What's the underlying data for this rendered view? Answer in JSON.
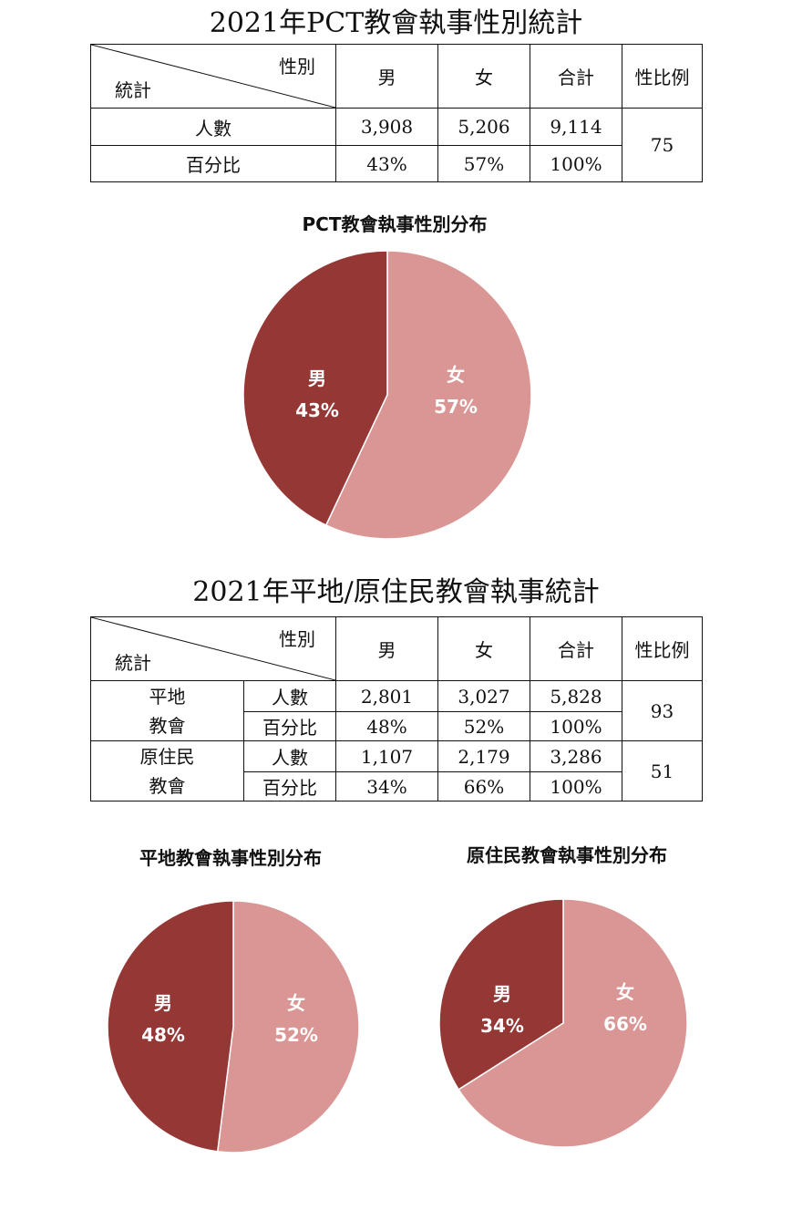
{
  "table1": {
    "title": "2021年PCT教會執事性別統計",
    "header": {
      "diag_top": "性別",
      "diag_bottom": "統計",
      "male": "男",
      "female": "女",
      "total": "合計",
      "ratio": "性比例"
    },
    "rows": [
      {
        "label": "人數",
        "male": "3,908",
        "female": "5,206",
        "total": "9,114"
      },
      {
        "label": "百分比",
        "male": "43%",
        "female": "57%",
        "total": "100%"
      }
    ],
    "ratio": "75"
  },
  "table2": {
    "title": "2021年平地/原住民教會執事統計",
    "header": {
      "diag_top": "性別",
      "diag_bottom": "統計",
      "male": "男",
      "female": "女",
      "total": "合計",
      "ratio": "性比例"
    },
    "groups": [
      {
        "name_line1": "平地",
        "name_line2": "教會",
        "count": {
          "label": "人數",
          "male": "2,801",
          "female": "3,027",
          "total": "5,828"
        },
        "pct": {
          "label": "百分比",
          "male": "48%",
          "female": "52%",
          "total": "100%"
        },
        "ratio": "93"
      },
      {
        "name_line1": "原住民",
        "name_line2": "教會",
        "count": {
          "label": "人數",
          "male": "1,107",
          "female": "2,179",
          "total": "3,286"
        },
        "pct": {
          "label": "百分比",
          "male": "34%",
          "female": "66%",
          "total": "100%"
        },
        "ratio": "51"
      }
    ]
  },
  "colors": {
    "male": "#953735",
    "female": "#D99694"
  },
  "chart_data": [
    {
      "type": "pie",
      "title": "PCT教會執事性別分布",
      "slices": [
        {
          "label": "女",
          "value": 57,
          "value_label": "57%"
        },
        {
          "label": "男",
          "value": 43,
          "value_label": "43%"
        }
      ]
    },
    {
      "type": "pie",
      "title": "平地教會執事性別分布",
      "slices": [
        {
          "label": "女",
          "value": 52,
          "value_label": "52%"
        },
        {
          "label": "男",
          "value": 48,
          "value_label": "48%"
        }
      ]
    },
    {
      "type": "pie",
      "title": "原住民教會執事性別分布",
      "slices": [
        {
          "label": "女",
          "value": 66,
          "value_label": "66%"
        },
        {
          "label": "男",
          "value": 34,
          "value_label": "34%"
        }
      ]
    }
  ]
}
